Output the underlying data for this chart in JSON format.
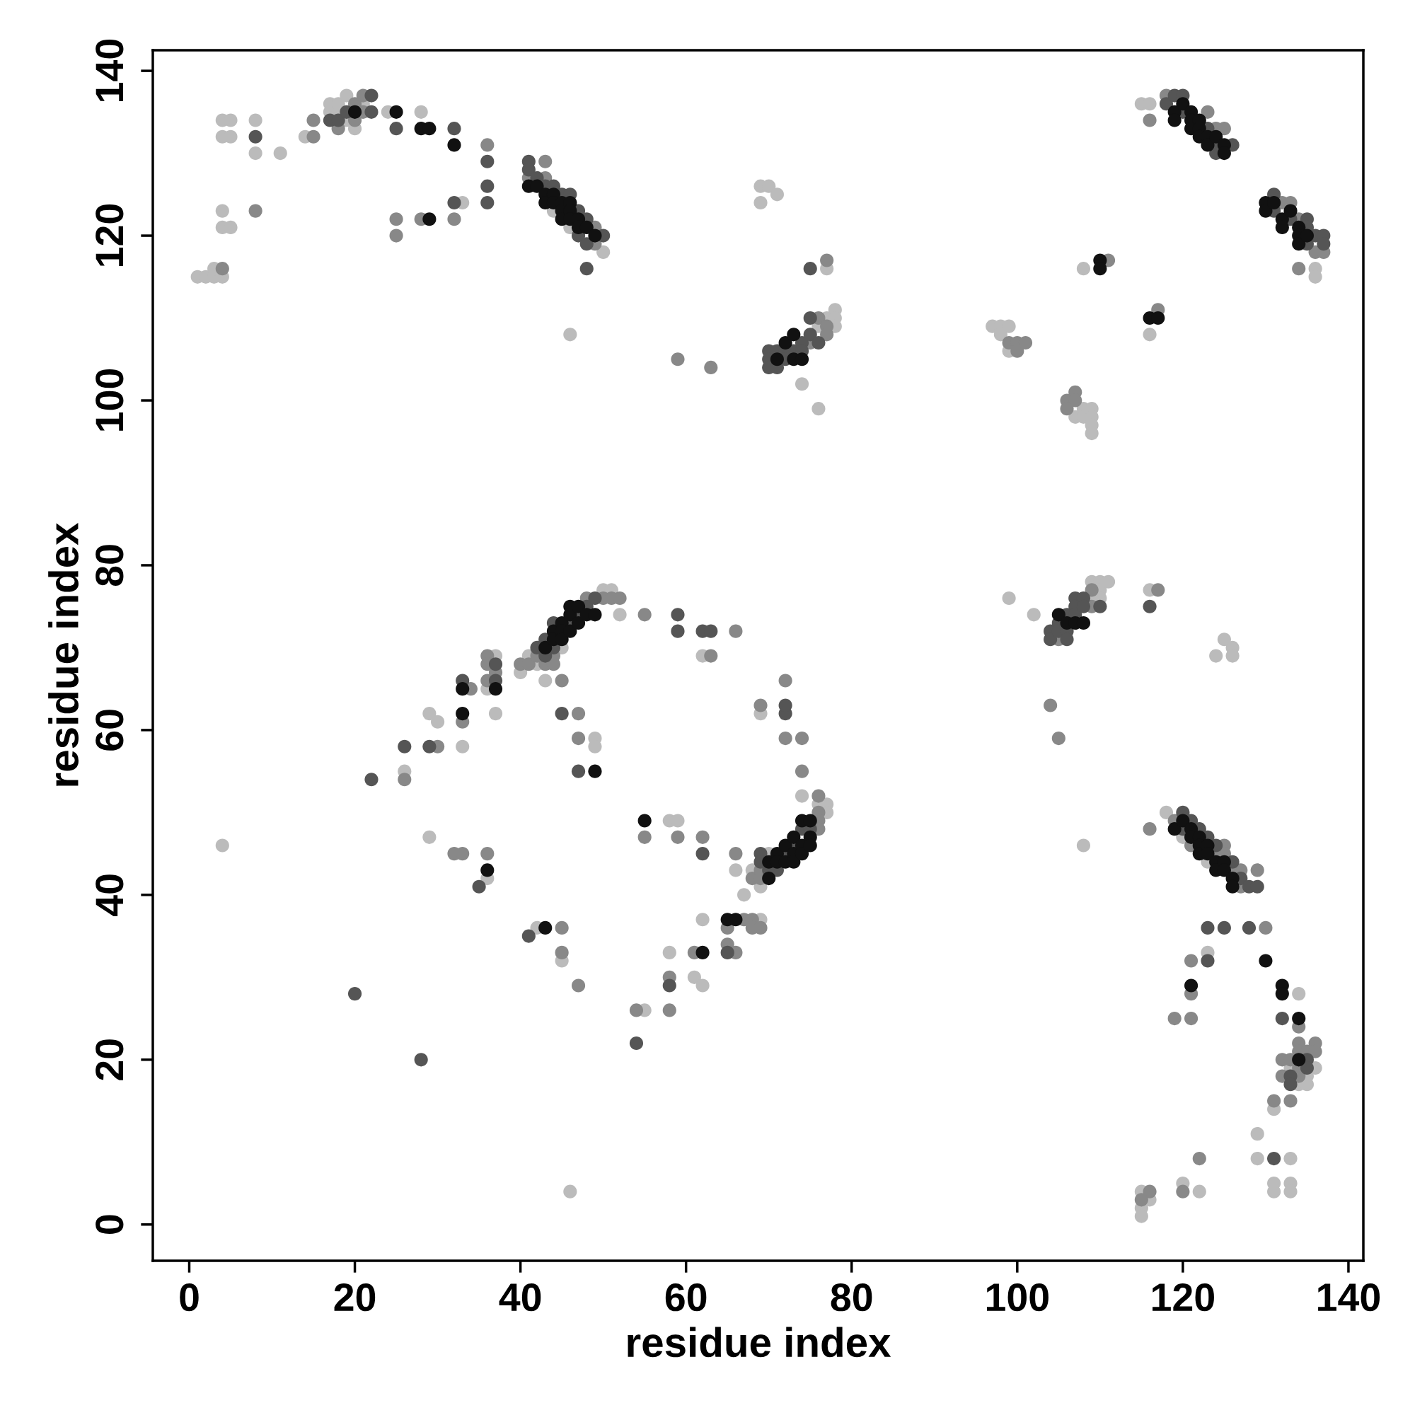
{
  "chart_data": {
    "type": "scatter",
    "xlabel": "residue index",
    "ylabel": "residue index",
    "xlim": [
      -4.4,
      141.8
    ],
    "ylim": [
      -4.4,
      142.5
    ],
    "xticks": [
      0,
      20,
      40,
      60,
      80,
      100,
      120,
      140
    ],
    "yticks": [
      0,
      20,
      40,
      60,
      80,
      100,
      120,
      140
    ],
    "marker": "circle",
    "series": [
      {
        "color": "#bbbbbb",
        "x": [
          1,
          2,
          3,
          3,
          4,
          4,
          4,
          4,
          4,
          5,
          5,
          5,
          8,
          8,
          11,
          14,
          17,
          17,
          18,
          18,
          19,
          19,
          20,
          21,
          24,
          28,
          33,
          44,
          46,
          50,
          46,
          69,
          70,
          71,
          69,
          76,
          77,
          77,
          78,
          78,
          78,
          74,
          76,
          97,
          98,
          99,
          98,
          99,
          107,
          108,
          108,
          109,
          109,
          109,
          109,
          108,
          116,
          115,
          116,
          136,
          136,
          4,
          26,
          29,
          30,
          29,
          33,
          36,
          36,
          37,
          37,
          40,
          41,
          42,
          43,
          45,
          49,
          49,
          50,
          51,
          52,
          62,
          58,
          59,
          66,
          67,
          69,
          68,
          70,
          76,
          77,
          77,
          74,
          69,
          69,
          62,
          61,
          62,
          58,
          55,
          42,
          45,
          46,
          99,
          102,
          109,
          109,
          110,
          110,
          110,
          111,
          116,
          125,
          126,
          124,
          126,
          108,
          118,
          120,
          123,
          123,
          134,
          133,
          136,
          135,
          134,
          135,
          131,
          129,
          129,
          133,
          120,
          122,
          131,
          131,
          133,
          133,
          115,
          116,
          115,
          115
        ],
        "values": [
          115,
          115,
          115,
          116,
          115,
          134,
          132,
          123,
          121,
          134,
          132,
          121,
          134,
          130,
          130,
          132,
          135,
          136,
          135,
          136,
          134,
          137,
          133,
          136,
          135,
          135,
          124,
          123,
          121,
          118,
          108,
          126,
          126,
          125,
          124,
          109,
          110,
          116,
          111,
          110,
          109,
          102,
          99,
          109,
          109,
          109,
          108,
          106,
          98,
          99,
          98,
          99,
          98,
          97,
          96,
          116,
          108,
          136,
          136,
          116,
          115,
          46,
          55,
          62,
          61,
          47,
          58,
          42,
          65,
          69,
          62,
          67,
          69,
          68,
          66,
          70,
          59,
          58,
          77,
          77,
          74,
          69,
          49,
          49,
          43,
          40,
          41,
          43,
          45,
          51,
          51,
          50,
          52,
          62,
          37,
          37,
          30,
          29,
          33,
          26,
          36,
          32,
          4,
          76,
          74,
          78,
          76,
          78,
          77,
          76,
          78,
          77,
          71,
          70,
          69,
          69,
          46,
          50,
          47,
          44,
          33,
          28,
          19,
          19,
          18,
          17,
          17,
          14,
          11,
          8,
          8,
          5,
          4,
          5,
          4,
          5,
          4,
          4,
          3,
          2,
          1
        ]
      },
      {
        "color": "#888888",
        "x": [
          4,
          8,
          15,
          15,
          18,
          20,
          20,
          21,
          21,
          36,
          32,
          28,
          25,
          25,
          41,
          43,
          43,
          49,
          49,
          59,
          63,
          75,
          76,
          77,
          77,
          77,
          99,
          100,
          100,
          101,
          106,
          107,
          107,
          106,
          111,
          117,
          116,
          118,
          123,
          124,
          125,
          132,
          133,
          134,
          136,
          137,
          134,
          26,
          30,
          32,
          33,
          33,
          34,
          36,
          36,
          36,
          36,
          37,
          40,
          41,
          42,
          43,
          44,
          44,
          45,
          47,
          47,
          48,
          50,
          51,
          52,
          55,
          63,
          66,
          55,
          59,
          62,
          66,
          68,
          69,
          69,
          76,
          76,
          76,
          76,
          74,
          74,
          72,
          72,
          69,
          67,
          68,
          68,
          69,
          65,
          65,
          66,
          61,
          58,
          58,
          54,
          45,
          45,
          47,
          105,
          109,
          109,
          117,
          104,
          105,
          116,
          119,
          121,
          124,
          125,
          125,
          126,
          127,
          127,
          129,
          130,
          121,
          121,
          119,
          121,
          134,
          134,
          136,
          134,
          135,
          136,
          132,
          133,
          134,
          132,
          134,
          131,
          133,
          122,
          120,
          116,
          115
        ],
        "values": [
          116,
          123,
          132,
          134,
          133,
          134,
          136,
          135,
          137,
          131,
          122,
          122,
          122,
          120,
          127,
          129,
          127,
          121,
          119,
          105,
          104,
          107,
          110,
          109,
          108,
          117,
          107,
          107,
          106,
          107,
          100,
          101,
          100,
          99,
          117,
          111,
          134,
          137,
          135,
          133,
          133,
          124,
          124,
          122,
          118,
          118,
          116,
          54,
          58,
          45,
          45,
          61,
          65,
          45,
          69,
          68,
          66,
          67,
          68,
          68,
          69,
          68,
          69,
          68,
          66,
          62,
          59,
          76,
          76,
          76,
          76,
          74,
          69,
          72,
          47,
          47,
          47,
          45,
          42,
          43,
          42,
          52,
          50,
          49,
          48,
          55,
          59,
          59,
          66,
          63,
          37,
          37,
          36,
          36,
          36,
          34,
          33,
          33,
          30,
          26,
          26,
          36,
          33,
          29,
          71,
          77,
          75,
          77,
          63,
          59,
          48,
          49,
          46,
          45,
          46,
          45,
          43,
          43,
          41,
          43,
          36,
          32,
          28,
          25,
          25,
          24,
          22,
          22,
          21,
          21,
          21,
          20,
          20,
          19,
          18,
          18,
          15,
          15,
          8,
          4,
          4,
          3
        ]
      },
      {
        "color": "#555555",
        "x": [
          8,
          17,
          18,
          19,
          22,
          22,
          25,
          32,
          36,
          36,
          36,
          32,
          41,
          41,
          42,
          43,
          44,
          45,
          46,
          47,
          47,
          48,
          48,
          50,
          48,
          70,
          70,
          70,
          71,
          71,
          72,
          72,
          73,
          74,
          74,
          75,
          75,
          76,
          75,
          118,
          119,
          120,
          120,
          123,
          124,
          126,
          124,
          131,
          131,
          133,
          135,
          135,
          135,
          136,
          137,
          137,
          20,
          28,
          22,
          26,
          29,
          33,
          35,
          37,
          37,
          42,
          43,
          43,
          44,
          44,
          45,
          46,
          47,
          47,
          48,
          49,
          59,
          59,
          62,
          63,
          62,
          69,
          69,
          70,
          71,
          72,
          73,
          74,
          75,
          72,
          72,
          65,
          58,
          54,
          41,
          104,
          104,
          105,
          105,
          106,
          106,
          106,
          107,
          107,
          107,
          108,
          108,
          110,
          116,
          120,
          120,
          121,
          122,
          123,
          124,
          126,
          127,
          128,
          129,
          123,
          125,
          128,
          123,
          132,
          135,
          135,
          133,
          133,
          131
        ],
        "values": [
          132,
          134,
          134,
          135,
          137,
          135,
          133,
          133,
          129,
          126,
          124,
          124,
          129,
          128,
          127,
          126,
          126,
          125,
          125,
          123,
          120,
          122,
          119,
          120,
          116,
          106,
          105,
          104,
          106,
          104,
          106,
          105,
          106,
          107,
          106,
          110,
          108,
          107,
          116,
          136,
          137,
          137,
          135,
          133,
          130,
          131,
          131,
          125,
          123,
          122,
          122,
          121,
          119,
          120,
          120,
          119,
          28,
          20,
          54,
          58,
          58,
          66,
          41,
          68,
          66,
          70,
          69,
          71,
          73,
          70,
          62,
          73,
          74,
          55,
          75,
          76,
          74,
          72,
          72,
          72,
          45,
          45,
          44,
          43,
          43,
          45,
          46,
          48,
          48,
          62,
          63,
          33,
          29,
          22,
          35,
          72,
          71,
          73,
          72,
          74,
          72,
          71,
          76,
          75,
          74,
          76,
          75,
          75,
          75,
          50,
          48,
          49,
          48,
          47,
          46,
          44,
          42,
          41,
          41,
          36,
          36,
          36,
          32,
          25,
          20,
          19,
          18,
          17,
          8
        ]
      },
      {
        "color": "#111111",
        "x": [
          20,
          25,
          28,
          29,
          32,
          29,
          41,
          42,
          43,
          43,
          44,
          44,
          45,
          45,
          45,
          46,
          46,
          46,
          47,
          47,
          48,
          49,
          71,
          72,
          73,
          73,
          74,
          110,
          110,
          116,
          117,
          119,
          119,
          120,
          121,
          121,
          121,
          122,
          122,
          122,
          123,
          123,
          124,
          125,
          125,
          130,
          130,
          131,
          132,
          132,
          133,
          134,
          134,
          134,
          135,
          33,
          33,
          36,
          37,
          43,
          44,
          44,
          45,
          45,
          45,
          46,
          46,
          46,
          47,
          47,
          48,
          49,
          49,
          55,
          70,
          70,
          71,
          71,
          72,
          72,
          73,
          73,
          73,
          74,
          74,
          74,
          75,
          75,
          75,
          65,
          66,
          62,
          43,
          105,
          106,
          107,
          108,
          119,
          120,
          121,
          121,
          122,
          122,
          122,
          123,
          123,
          124,
          124,
          125,
          125,
          126,
          126,
          130,
          121,
          132,
          132,
          134,
          134
        ],
        "values": [
          135,
          135,
          133,
          133,
          131,
          122,
          126,
          126,
          125,
          124,
          125,
          124,
          124,
          123,
          122,
          124,
          123,
          122,
          122,
          121,
          121,
          120,
          105,
          107,
          108,
          105,
          105,
          117,
          116,
          110,
          110,
          135,
          134,
          136,
          135,
          134,
          133,
          134,
          133,
          132,
          132,
          131,
          132,
          131,
          130,
          124,
          123,
          124,
          122,
          121,
          123,
          121,
          120,
          119,
          120,
          62,
          65,
          43,
          65,
          70,
          72,
          71,
          73,
          72,
          71,
          75,
          74,
          72,
          75,
          73,
          74,
          74,
          55,
          49,
          44,
          42,
          45,
          44,
          46,
          44,
          47,
          45,
          44,
          49,
          46,
          45,
          49,
          47,
          46,
          37,
          37,
          33,
          36,
          74,
          73,
          73,
          73,
          48,
          49,
          48,
          47,
          47,
          46,
          45,
          46,
          45,
          44,
          43,
          44,
          43,
          42,
          41,
          32,
          29,
          29,
          28,
          25,
          20
        ]
      }
    ]
  }
}
